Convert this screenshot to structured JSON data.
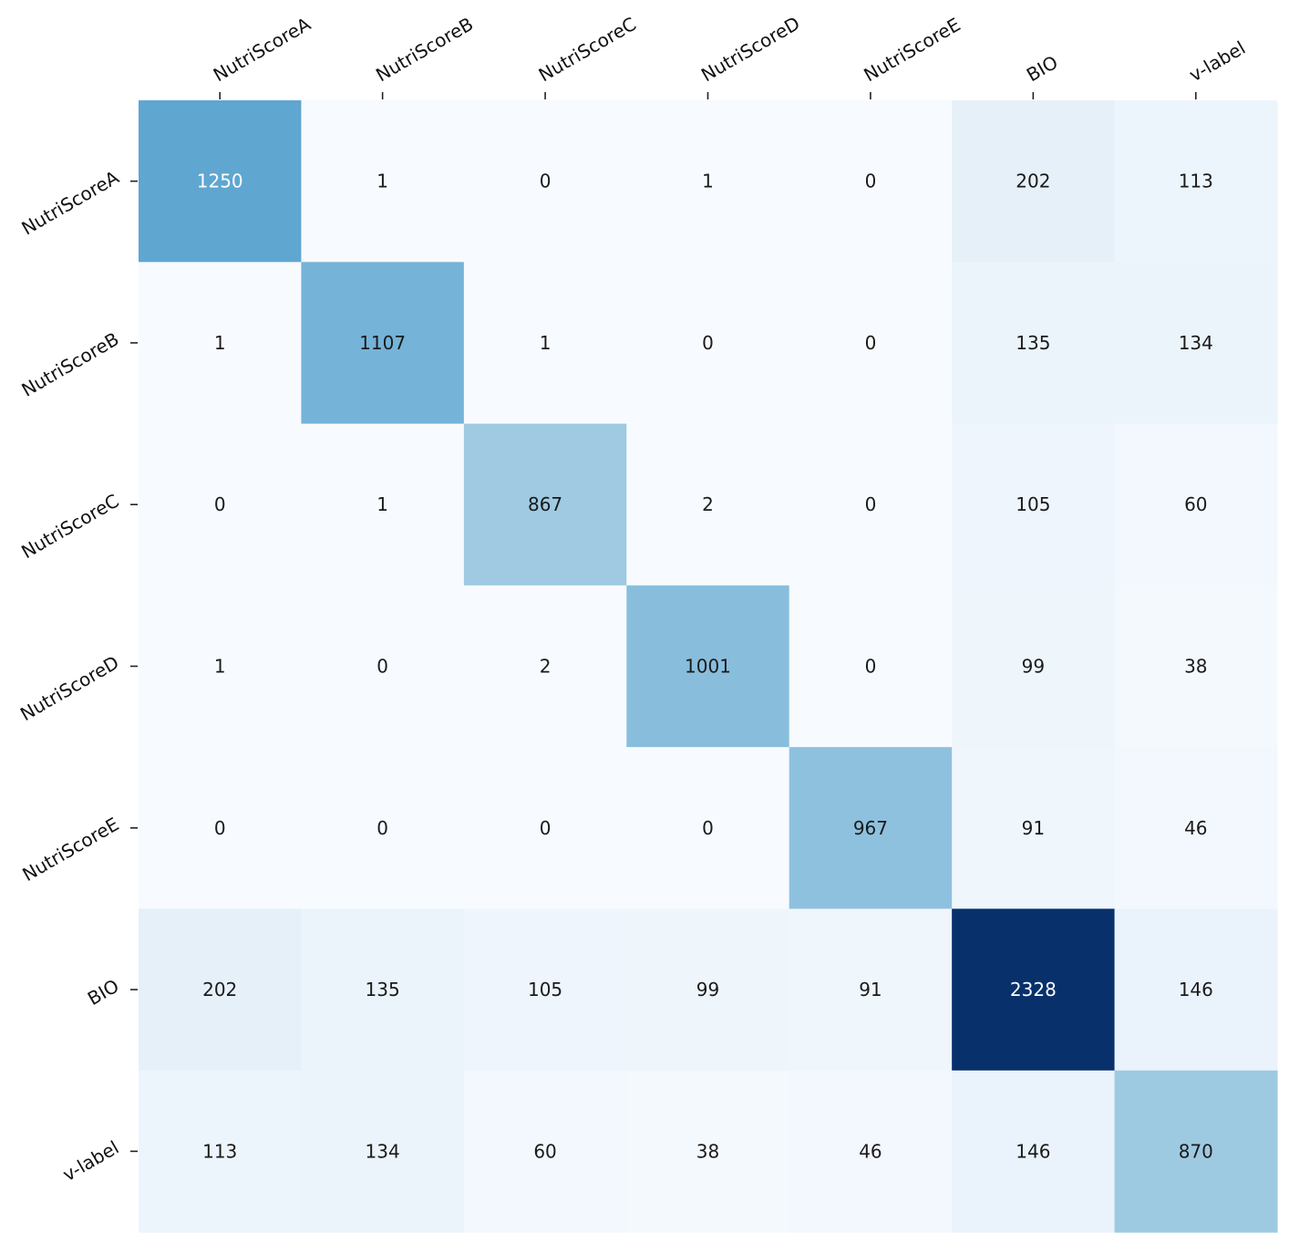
{
  "chart_data": {
    "type": "heatmap",
    "colormap": "Blues",
    "x_categories": [
      "NutriScoreA",
      "NutriScoreB",
      "NutriScoreC",
      "NutriScoreD",
      "NutriScoreE",
      "BIO",
      "v-label"
    ],
    "y_categories": [
      "NutriScoreA",
      "NutriScoreB",
      "NutriScoreC",
      "NutriScoreD",
      "NutriScoreE",
      "BIO",
      "v-label"
    ],
    "x_tick_position": "top",
    "y_tick_position": "left",
    "annotated": true,
    "values": [
      [
        1250,
        1,
        0,
        1,
        0,
        202,
        113
      ],
      [
        1,
        1107,
        1,
        0,
        0,
        135,
        134
      ],
      [
        0,
        1,
        867,
        2,
        0,
        105,
        60
      ],
      [
        1,
        0,
        2,
        1001,
        0,
        99,
        38
      ],
      [
        0,
        0,
        0,
        0,
        967,
        91,
        46
      ],
      [
        202,
        135,
        105,
        99,
        91,
        2328,
        146
      ],
      [
        113,
        134,
        60,
        38,
        46,
        146,
        870
      ]
    ],
    "vmin": 0,
    "vmax": 2328,
    "grid": false
  }
}
